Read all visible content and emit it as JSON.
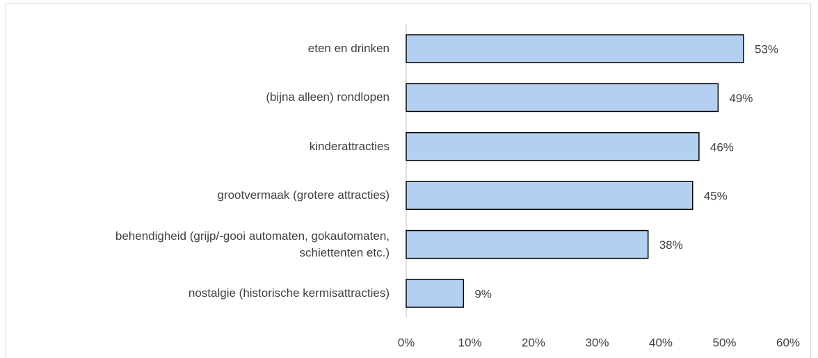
{
  "chart_data": {
    "type": "bar",
    "orientation": "horizontal",
    "categories": [
      "eten en drinken",
      "(bijna alleen) rondlopen",
      "kinderattracties",
      "grootvermaak (grotere attracties)",
      "behendigheid (grijp/-gooi automaten, gokautomaten,\nschiettenten etc.)",
      "nostalgie (historische kermisattracties)"
    ],
    "values": [
      53,
      49,
      46,
      45,
      38,
      9
    ],
    "value_labels": [
      "53%",
      "49%",
      "46%",
      "45%",
      "38%",
      "9%"
    ],
    "color": "#b4d0f0",
    "xlim": [
      0,
      60
    ],
    "xticks": [
      {
        "value": 0,
        "label": "0%"
      },
      {
        "value": 10,
        "label": "10%"
      },
      {
        "value": 20,
        "label": "20%"
      },
      {
        "value": 30,
        "label": "30%"
      },
      {
        "value": 40,
        "label": "40%"
      },
      {
        "value": 50,
        "label": "50%"
      },
      {
        "value": 60,
        "label": "60%"
      }
    ],
    "grid": false
  }
}
